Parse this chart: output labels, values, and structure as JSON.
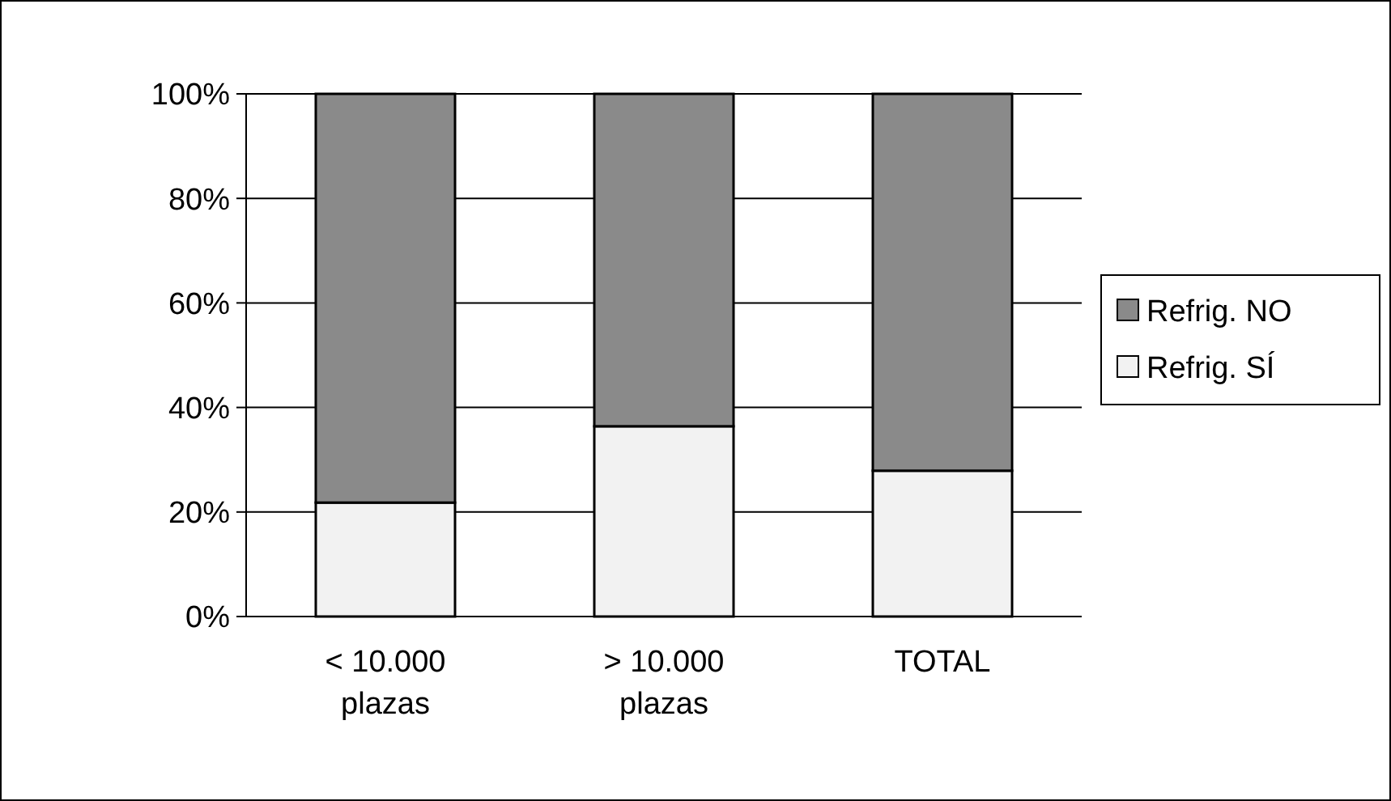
{
  "chart_data": {
    "type": "bar",
    "stacked": true,
    "categories": [
      "< 10.000\nplazas",
      "> 10.000\nplazas",
      "TOTAL"
    ],
    "series": [
      {
        "name": "Refrig. SÍ",
        "color": "#f2f2f2",
        "values": [
          21.8,
          36.4,
          27.9
        ]
      },
      {
        "name": "Refrig. NO",
        "color": "#8a8a8a",
        "values": [
          78.2,
          63.6,
          72.1
        ]
      }
    ],
    "ylim": [
      0,
      100
    ],
    "yticks": [
      {
        "value": 0,
        "label": "0%"
      },
      {
        "value": 20,
        "label": "20%"
      },
      {
        "value": 40,
        "label": "40%"
      },
      {
        "value": 60,
        "label": "60%"
      },
      {
        "value": 80,
        "label": "80%"
      },
      {
        "value": 100,
        "label": "100%"
      }
    ],
    "grid": "y",
    "legend": "right"
  }
}
